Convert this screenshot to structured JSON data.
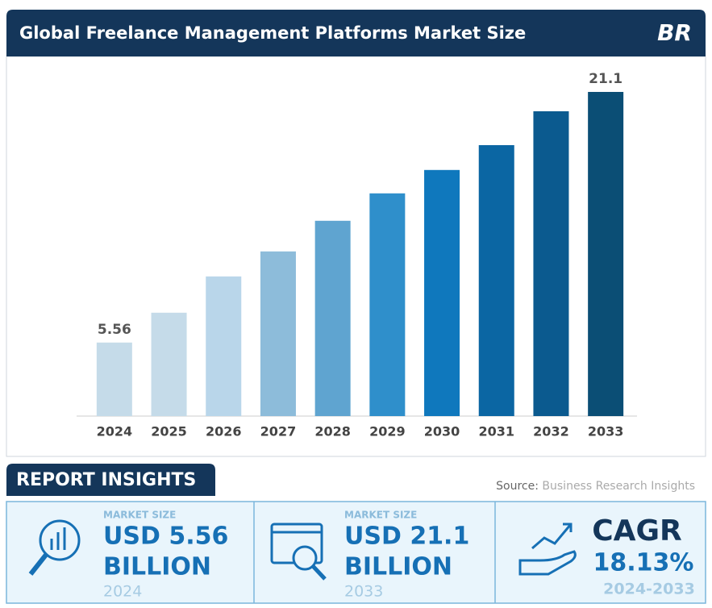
{
  "chart_data": {
    "type": "bar",
    "title": "Global Freelance Management Platforms Market Size",
    "categories": [
      "2024",
      "2025",
      "2026",
      "2027",
      "2028",
      "2029",
      "2030",
      "2031",
      "2032",
      "2033"
    ],
    "values": [
      5.56,
      7.41,
      9.66,
      11.21,
      13.11,
      14.81,
      16.26,
      17.8,
      19.9,
      21.1
    ],
    "colors": [
      "#c5dbe9",
      "#c5dbe9",
      "#b9d6ea",
      "#8dbcda",
      "#5fa4d0",
      "#2f8fcb",
      "#0f78bd",
      "#0b66a3",
      "#0b5a8f",
      "#0b4e75"
    ],
    "ylim": [
      1,
      22
    ]
  },
  "logo": "BR",
  "insights": {
    "heading": "REPORT INSIGHTS",
    "source_label": "Source:",
    "source": "Business Research Insights",
    "cards": [
      {
        "label": "MARKET SIZE",
        "value": "USD 5.56",
        "unit": "BILLION",
        "year": "2024"
      },
      {
        "label": "MARKET SIZE",
        "value": "USD 21.1",
        "unit": "BILLION",
        "year": "2033"
      },
      {
        "label": "CAGR",
        "value": "18.13%",
        "year": "2024-2033"
      }
    ]
  }
}
